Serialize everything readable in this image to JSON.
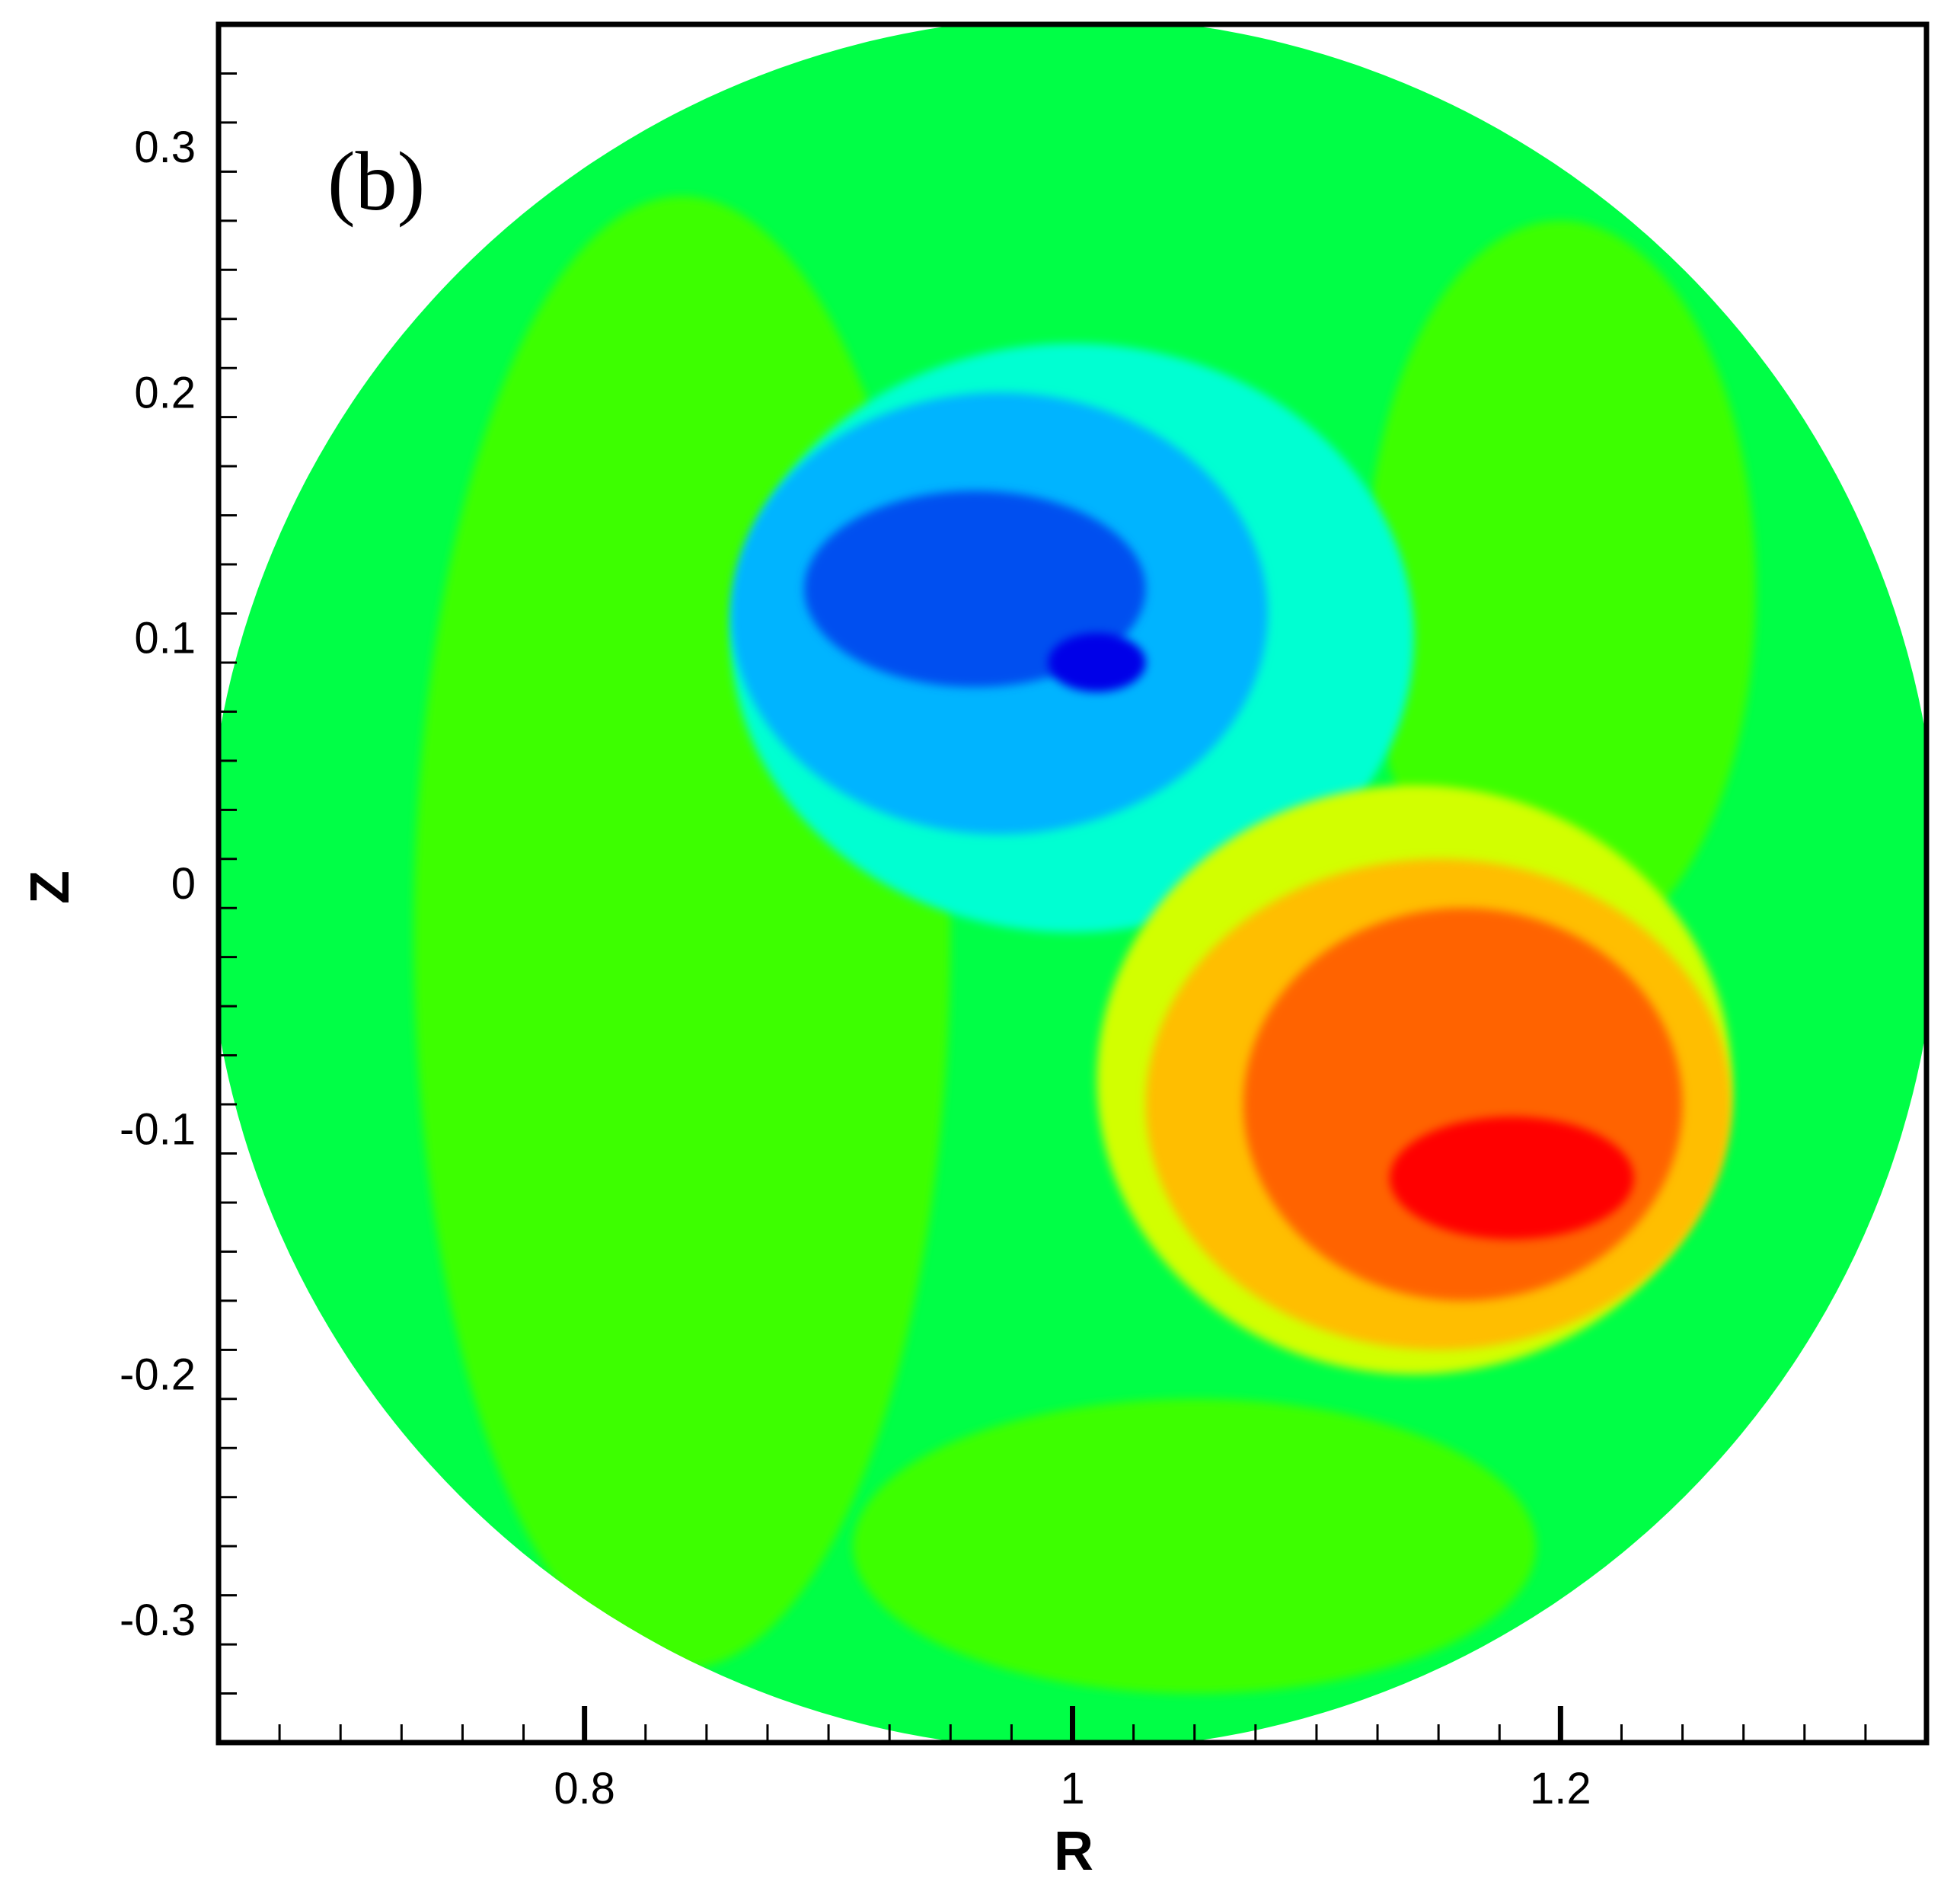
{
  "chart_data": {
    "type": "heatmap",
    "panel_label": "(b)",
    "xlabel": "R",
    "ylabel": "Z",
    "xlim": [
      0.65,
      1.35
    ],
    "ylim": [
      -0.35,
      0.35
    ],
    "x_ticks": [
      0.8,
      1.0,
      1.2
    ],
    "x_tick_labels": [
      "0.8",
      "1",
      "1.2"
    ],
    "y_ticks": [
      0.3,
      0.2,
      0.1,
      0,
      -0.1,
      -0.2,
      -0.3
    ],
    "y_tick_labels": [
      "0.3",
      "0.2",
      "0.1",
      "0",
      "-0.1",
      "-0.2",
      "-0.3"
    ],
    "x_minor_step": 0.025,
    "y_minor_step": 0.02,
    "grid": false,
    "legend": "none",
    "colormap": [
      "#0000e8",
      "#0050f0",
      "#00b4ff",
      "#00ffd2",
      "#00ff46",
      "#3cff00",
      "#d2ff00",
      "#ffbe00",
      "#ff6400",
      "#ff0000"
    ],
    "domain": {
      "shape": "circle",
      "center": [
        1.0,
        0.0
      ],
      "radius": 0.355
    },
    "regions": [
      {
        "level": "green-outer",
        "color": "#00ff46",
        "center": [
          1.0,
          0.0
        ],
        "radius": 0.355
      },
      {
        "level": "yellow-green-arm-left",
        "color": "#3cff00",
        "center": [
          0.84,
          -0.02
        ],
        "rx": 0.11,
        "ry": 0.3
      },
      {
        "level": "yellow-green-arm-bottom",
        "color": "#3cff00",
        "center": [
          1.05,
          -0.27
        ],
        "rx": 0.14,
        "ry": 0.06
      },
      {
        "level": "yellow-green-arm-right",
        "color": "#3cff00",
        "center": [
          1.2,
          0.12
        ],
        "rx": 0.08,
        "ry": 0.15
      },
      {
        "level": "core-negative",
        "color": "#00ffd2",
        "center": [
          1.0,
          0.1
        ],
        "rx": 0.14,
        "ry": 0.12
      },
      {
        "level": "core-negative-mid",
        "color": "#00b4ff",
        "center": [
          0.97,
          0.11
        ],
        "rx": 0.11,
        "ry": 0.09
      },
      {
        "level": "core-negative-strong",
        "color": "#0050f0",
        "center": [
          0.96,
          0.12
        ],
        "rx": 0.07,
        "ry": 0.04
      },
      {
        "level": "core-negative-min",
        "color": "#0000e8",
        "center": [
          1.01,
          0.09
        ],
        "rx": 0.02,
        "ry": 0.012
      },
      {
        "level": "core-positive",
        "color": "#d2ff00",
        "center": [
          1.14,
          -0.08
        ],
        "rx": 0.13,
        "ry": 0.12
      },
      {
        "level": "core-positive-mid",
        "color": "#ffbe00",
        "center": [
          1.15,
          -0.09
        ],
        "rx": 0.12,
        "ry": 0.1
      },
      {
        "level": "core-positive-strong",
        "color": "#ff6400",
        "center": [
          1.16,
          -0.09
        ],
        "rx": 0.09,
        "ry": 0.08
      },
      {
        "level": "core-positive-max",
        "color": "#ff0000",
        "center": [
          1.18,
          -0.12
        ],
        "rx": 0.05,
        "ry": 0.025
      }
    ]
  }
}
